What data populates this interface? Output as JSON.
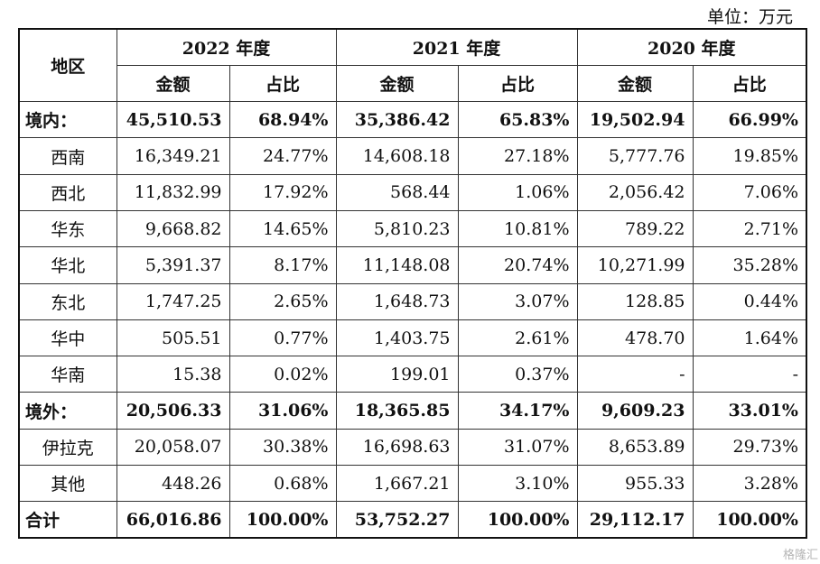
{
  "unit_label": "单位：万元",
  "header": {
    "region": "地区",
    "years": [
      "2022 年度",
      "2021 年度",
      "2020 年度"
    ],
    "amount": "金额",
    "ratio": "占比"
  },
  "rows": [
    {
      "region": "境内：",
      "bold": true,
      "cells": [
        "45,510.53",
        "68.94%",
        "35,386.42",
        "65.83%",
        "19,502.94",
        "66.99%"
      ]
    },
    {
      "region": "西南",
      "bold": false,
      "cells": [
        "16,349.21",
        "24.77%",
        "14,608.18",
        "27.18%",
        "5,777.76",
        "19.85%"
      ]
    },
    {
      "region": "西北",
      "bold": false,
      "cells": [
        "11,832.99",
        "17.92%",
        "568.44",
        "1.06%",
        "2,056.42",
        "7.06%"
      ]
    },
    {
      "region": "华东",
      "bold": false,
      "cells": [
        "9,668.82",
        "14.65%",
        "5,810.23",
        "10.81%",
        "789.22",
        "2.71%"
      ]
    },
    {
      "region": "华北",
      "bold": false,
      "cells": [
        "5,391.37",
        "8.17%",
        "11,148.08",
        "20.74%",
        "10,271.99",
        "35.28%"
      ]
    },
    {
      "region": "东北",
      "bold": false,
      "cells": [
        "1,747.25",
        "2.65%",
        "1,648.73",
        "3.07%",
        "128.85",
        "0.44%"
      ]
    },
    {
      "region": "华中",
      "bold": false,
      "cells": [
        "505.51",
        "0.77%",
        "1,403.75",
        "2.61%",
        "478.70",
        "1.64%"
      ]
    },
    {
      "region": "华南",
      "bold": false,
      "cells": [
        "15.38",
        "0.02%",
        "199.01",
        "0.37%",
        "-",
        "-"
      ]
    },
    {
      "region": "境外：",
      "bold": true,
      "cells": [
        "20,506.33",
        "31.06%",
        "18,365.85",
        "34.17%",
        "9,609.23",
        "33.01%"
      ]
    },
    {
      "region": "伊拉克",
      "bold": false,
      "cells": [
        "20,058.07",
        "30.38%",
        "16,698.63",
        "31.07%",
        "8,653.89",
        "29.73%"
      ]
    },
    {
      "region": "其他",
      "bold": false,
      "cells": [
        "448.26",
        "0.68%",
        "1,667.21",
        "3.10%",
        "955.33",
        "3.28%"
      ]
    },
    {
      "region": "合计",
      "bold": true,
      "cells": [
        "66,016.86",
        "100.00%",
        "53,752.27",
        "100.00%",
        "29,112.17",
        "100.00%"
      ]
    }
  ],
  "watermark": "格隆汇"
}
